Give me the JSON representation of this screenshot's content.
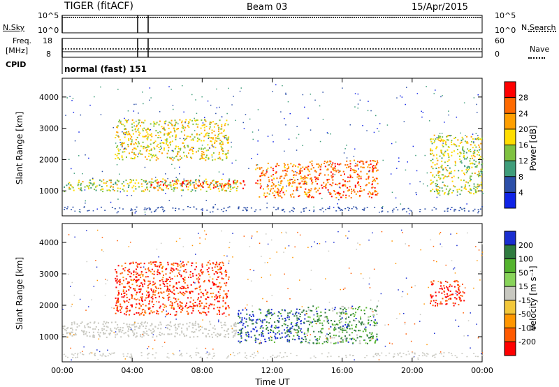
{
  "header": {
    "radar": "TIGER (fitACF)",
    "beam": "Beam 03",
    "date": "15/Apr/2015"
  },
  "panels": {
    "nsky": {
      "label": "N.Sky",
      "y_ticks": [
        "10^5",
        "10^0"
      ],
      "right_label": "N.Search",
      "right_ticks": [
        "10^5",
        "10^0"
      ]
    },
    "freq": {
      "label_line1": "Freq.",
      "label_line2": "[MHz]",
      "y_ticks": [
        "18",
        "8"
      ],
      "right_label": "Nave",
      "right_ticks": [
        "60",
        "0"
      ]
    },
    "cpid": {
      "label": "CPID",
      "text": "normal (fast) 151"
    }
  },
  "colorbars": {
    "power": {
      "label": "Power [dB]",
      "ticks": [
        "28",
        "24",
        "20",
        "16",
        "12",
        "8",
        "4"
      ],
      "colors": [
        "#ff0000",
        "#ff6a00",
        "#ff9f00",
        "#ffdd00",
        "#7fc241",
        "#3f9d7a",
        "#2c4fa8",
        "#0f23e6"
      ]
    },
    "velocity": {
      "label": "Velocity [m s⁻¹]",
      "ticks": [
        "200",
        "100",
        "50",
        "15",
        "-15",
        "-50",
        "-100",
        "-200"
      ],
      "colors": [
        "#1a2ed0",
        "#2f7b3f",
        "#54b32e",
        "#88d35a",
        "#c8c8c0",
        "#f2c73a",
        "#ff9600",
        "#ff5a00",
        "#ff0000"
      ]
    }
  },
  "chart_data": [
    {
      "type": "heatmap",
      "title": "Power",
      "ylabel": "Slant Range [km]",
      "xlabel": "",
      "x_ticks": [
        "00:00",
        "04:00",
        "08:00",
        "12:00",
        "16:00",
        "20:00",
        "00:00"
      ],
      "y_ticks": [
        1000,
        2000,
        3000,
        4000
      ],
      "ylim": [
        200,
        4600
      ],
      "xlim_hours": [
        0,
        24
      ],
      "colorbar_range_db": [
        0,
        32
      ],
      "features": [
        {
          "name": "band",
          "hours": [
            0,
            10
          ],
          "range_km": [
            1000,
            1400
          ],
          "level": 14
        },
        {
          "name": "band-strong",
          "hours": [
            5,
            10.5
          ],
          "range_km": [
            1100,
            1350
          ],
          "level": 26
        },
        {
          "name": "upper-scatter",
          "hours": [
            3,
            9.5
          ],
          "range_km": [
            2000,
            3300
          ],
          "level": 16
        },
        {
          "name": "feature-13h",
          "hours": [
            11,
            14
          ],
          "range_km": [
            800,
            1900
          ],
          "level": 22
        },
        {
          "name": "feature-16h",
          "hours": [
            14,
            18
          ],
          "range_km": [
            800,
            2000
          ],
          "level": 24
        },
        {
          "name": "feature-21h",
          "hours": [
            21,
            24
          ],
          "range_km": [
            900,
            2800
          ],
          "level": 14
        }
      ]
    },
    {
      "type": "heatmap",
      "title": "Velocity",
      "ylabel": "Slant Range [km]",
      "xlabel": "Time UT",
      "x_ticks": [
        "00:00",
        "04:00",
        "08:00",
        "12:00",
        "16:00",
        "20:00",
        "00:00"
      ],
      "y_ticks": [
        1000,
        2000,
        3000,
        4000
      ],
      "ylim": [
        200,
        4600
      ],
      "xlim_hours": [
        0,
        24
      ],
      "colorbar_range_ms": [
        -250,
        250
      ],
      "features": [
        {
          "name": "ground-scatter",
          "hours": [
            0,
            10
          ],
          "range_km": [
            1000,
            1500
          ],
          "level": 0
        },
        {
          "name": "positive-east",
          "hours": [
            3,
            9.5
          ],
          "range_km": [
            1700,
            3400
          ],
          "level": -150
        },
        {
          "name": "mixed-13h",
          "hours": [
            10,
            14
          ],
          "range_km": [
            800,
            1900
          ],
          "level": 150
        },
        {
          "name": "mixed-16h",
          "hours": [
            14,
            18
          ],
          "range_km": [
            800,
            2000
          ],
          "level": 80
        },
        {
          "name": "negative-21h",
          "hours": [
            21,
            23
          ],
          "range_km": [
            2000,
            2800
          ],
          "level": -180
        }
      ]
    }
  ]
}
